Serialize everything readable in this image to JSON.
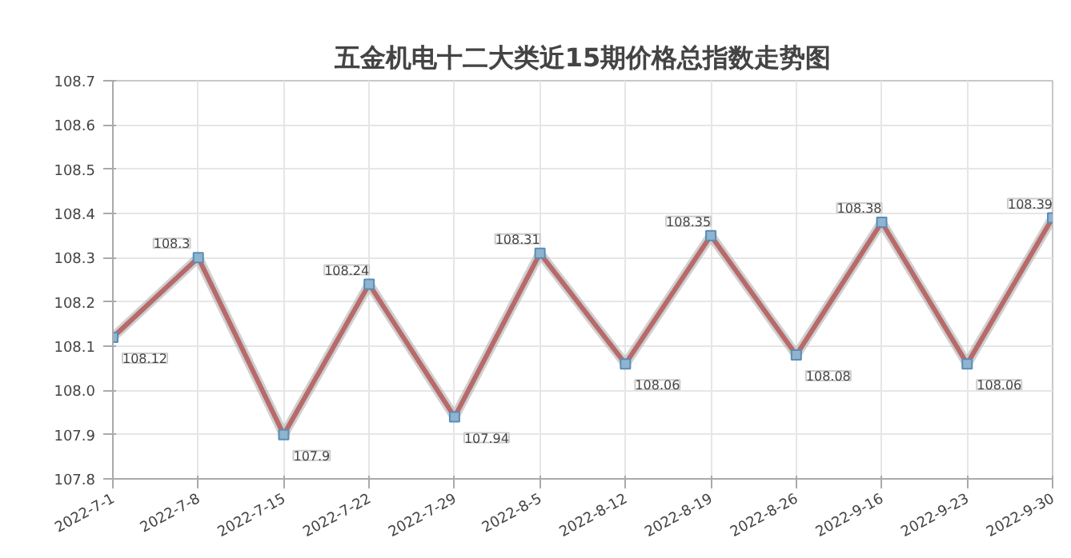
{
  "chart_data": {
    "type": "line",
    "title": "五金机电十二大类近15期价格总指数走势图",
    "categories": [
      "2022-7-1",
      "2022-7-8",
      "2022-7-15",
      "2022-7-22",
      "2022-7-29",
      "2022-8-5",
      "2022-8-12",
      "2022-8-19",
      "2022-8-26",
      "2022-9-16",
      "2022-9-23",
      "2022-9-30"
    ],
    "series": [
      {
        "color": "#b86a6a",
        "values": [
          108.12,
          108.3,
          107.9,
          108.24,
          107.94,
          108.31,
          108.06,
          108.35,
          108.08,
          108.38,
          108.06,
          108.39
        ]
      }
    ],
    "ylim": [
      107.8,
      108.7
    ],
    "yticks": [
      107.8,
      107.9,
      {
        "value": 108.0,
        "label": "108.0"
      },
      108.1,
      108.2,
      108.3,
      108.4,
      108.5,
      108.6,
      108.7
    ],
    "grid": true,
    "marker": "square",
    "line_style": "solid",
    "data_labels": true
  }
}
